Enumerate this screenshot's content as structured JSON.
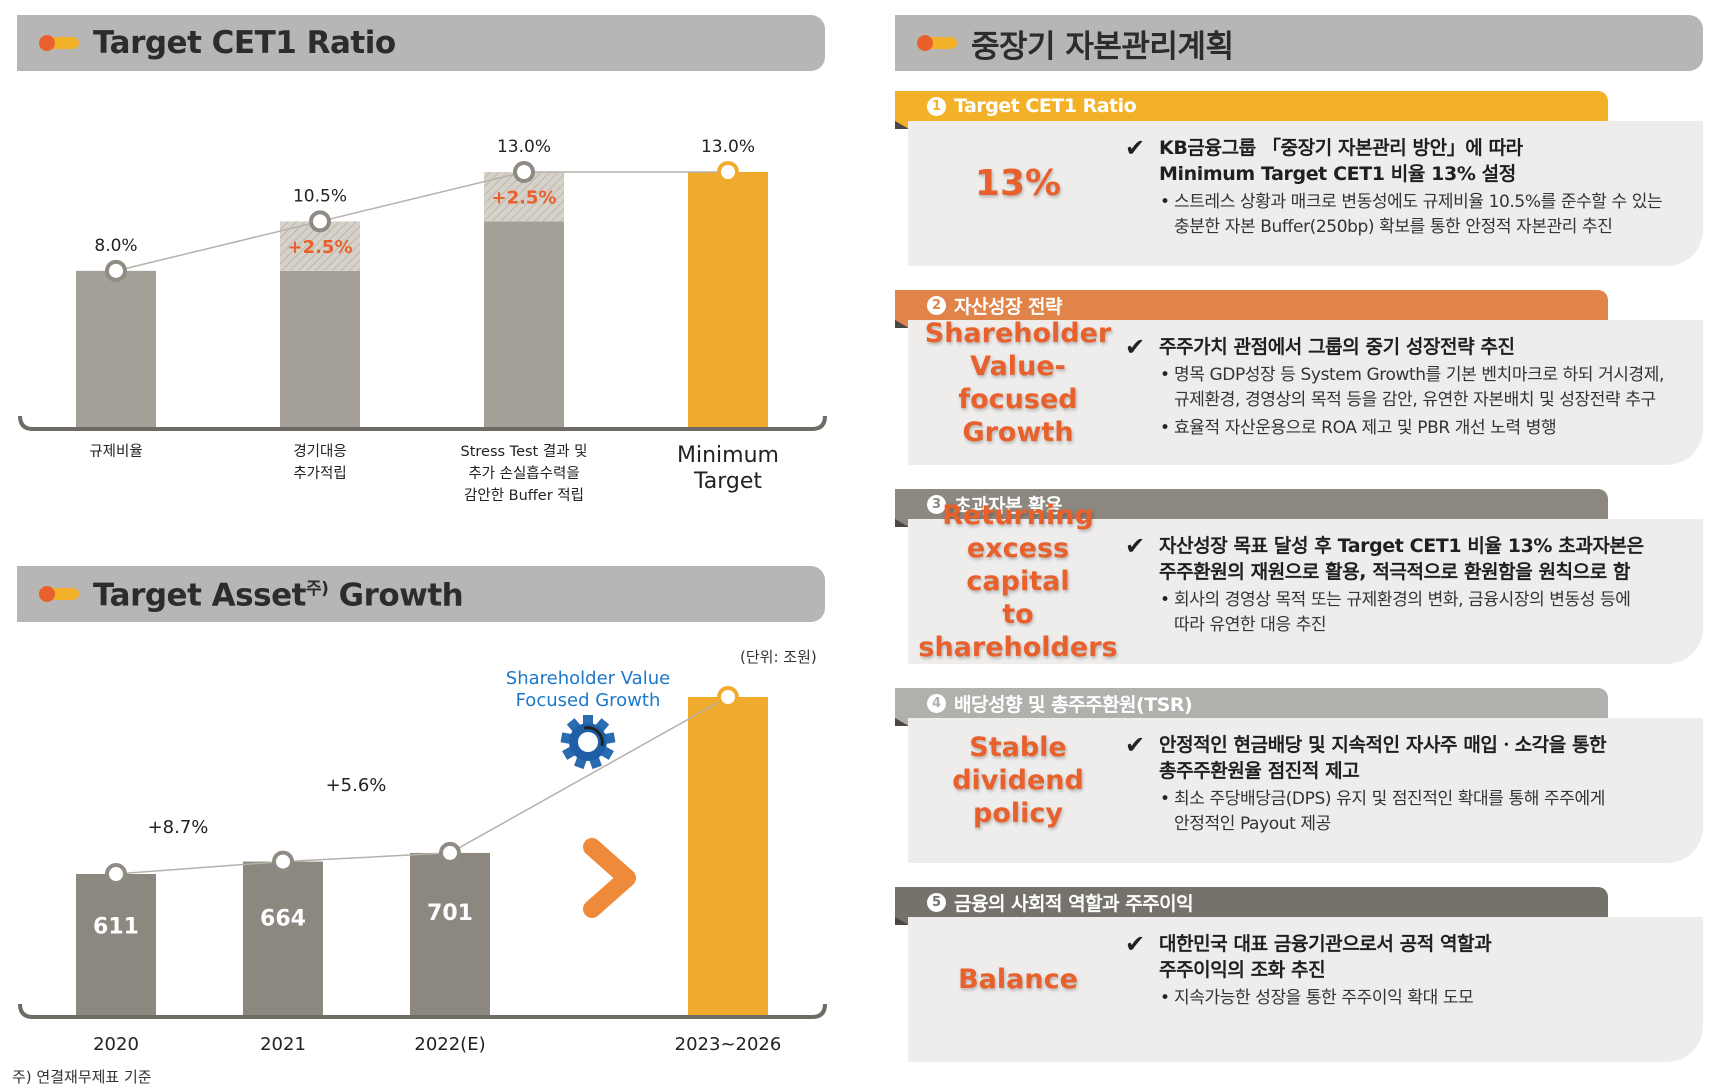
{
  "cet1_section": {
    "title": "Target CET1 Ratio"
  },
  "asset_section": {
    "title": "Target Asset",
    "title_sup": "주)",
    "title_tail": " Growth",
    "unit": "(단위: 조원)",
    "footnote": "주) 연결재무제표 기준"
  },
  "colors": {
    "bar_gray": "#a49f97",
    "bar_dark": "#8c877f",
    "target": "#f0ab2c",
    "orange": "#e8612c",
    "blue": "#1e77c9"
  },
  "chart_data": [
    {
      "type": "bar",
      "title": "Target CET1 Ratio",
      "unit": "%",
      "ylim": [
        0,
        13
      ],
      "categories": [
        [
          "규제비율"
        ],
        [
          "경기대응",
          "추가적립"
        ],
        [
          "Stress Test 결과 및",
          "추가 손실흡수력을",
          "감안한 Buffer 적립"
        ],
        [
          "Minimum",
          "Target"
        ]
      ],
      "base_values": [
        8.0,
        8.0,
        10.5,
        0
      ],
      "add_values": [
        0,
        2.5,
        2.5,
        0
      ],
      "target_values": [
        0,
        0,
        0,
        13.0
      ],
      "totals": [
        8.0,
        10.5,
        13.0,
        13.0
      ],
      "value_labels": [
        "8.0%",
        "10.5%",
        "13.0%",
        "13.0%"
      ],
      "add_labels": [
        "",
        "+2.5%",
        "+2.5%",
        ""
      ]
    },
    {
      "type": "bar",
      "title": "Target Asset Growth",
      "unit": "조원",
      "ylim": [
        0,
        900
      ],
      "categories": [
        "2020",
        "2021",
        "2022(E)",
        "2023~2026"
      ],
      "values": [
        611,
        664,
        701,
        null
      ],
      "value_labels": [
        "611",
        "664",
        "701",
        ""
      ],
      "growth_labels": [
        "+8.7%",
        "+5.6%"
      ],
      "annotation": [
        "Shareholder Value",
        "Focused Growth"
      ]
    }
  ],
  "plan_section": {
    "title": "중장기 자본관리계획",
    "cards": [
      {
        "num": "1",
        "tab": "Target CET1 Ratio",
        "tab_color": "#f3b12a",
        "keyword": [
          "13%"
        ],
        "headline": [
          "KB금융그룹 「중장기 자본관리 방안」에 따라",
          "Minimum Target CET1 비율 13% 설정"
        ],
        "bullets": [
          [
            "스트레스 상황과 매크로 변동성에도 규제비율 10.5%를 준수할 수 있는",
            "충분한 자본 Buffer(250bp) 확보를 통한 안정적 자본관리 추진"
          ]
        ]
      },
      {
        "num": "2",
        "tab": "자산성장 전략",
        "tab_color": "#e0844a",
        "keyword": [
          "Shareholder",
          "Value-focused",
          "Growth"
        ],
        "headline": [
          "주주가치 관점에서 그룹의 중기 성장전략 추진"
        ],
        "bullets": [
          [
            "명목 GDP성장 등 System Growth를 기본 벤치마크로 하되 거시경제,",
            "규제환경, 경영상의 목적 등을 감안, 유연한 자본배치 및 성장전략 추구"
          ],
          [
            "효율적 자산운용으로 ROA 제고 및 PBR 개선 노력 병행"
          ]
        ]
      },
      {
        "num": "3",
        "tab": "초과자본 활용",
        "tab_color": "#8c8880",
        "keyword": [
          "Returning",
          "excess capital",
          "to shareholders"
        ],
        "headline": [
          "자산성장 목표 달성 후 Target CET1 비율 13% 초과자본은",
          "주주환원의 재원으로 활용, 적극적으로 환원함을 원칙으로 함"
        ],
        "bullets": [
          [
            "회사의 경영상 목적 또는 규제환경의 변화, 금융시장의 변동성 등에",
            "따라 유연한 대응 추진"
          ]
        ]
      },
      {
        "num": "4",
        "tab": "배당성향 및 총주주환원(TSR)",
        "tab_color": "#b2b0ad",
        "keyword": [
          "Stable",
          "dividend",
          "policy"
        ],
        "headline": [
          "안정적인 현금배당 및 지속적인 자사주 매입ㆍ소각을 통한",
          "총주주환원율 점진적 제고"
        ],
        "bullets": [
          [
            "최소 주당배당금(DPS) 유지 및 점진적인 확대를 통해 주주에게",
            "안정적인 Payout 제공"
          ]
        ]
      },
      {
        "num": "5",
        "tab": "금융의 사회적 역할과 주주이익",
        "tab_color": "#75716b",
        "keyword": [
          "Balance"
        ],
        "headline": [
          "대한민국 대표 금융기관으로서 공적 역할과",
          "주주이익의 조화 추진"
        ],
        "bullets": [
          [
            "지속가능한 성장을 통한 주주이익 확대 도모"
          ]
        ]
      }
    ]
  }
}
